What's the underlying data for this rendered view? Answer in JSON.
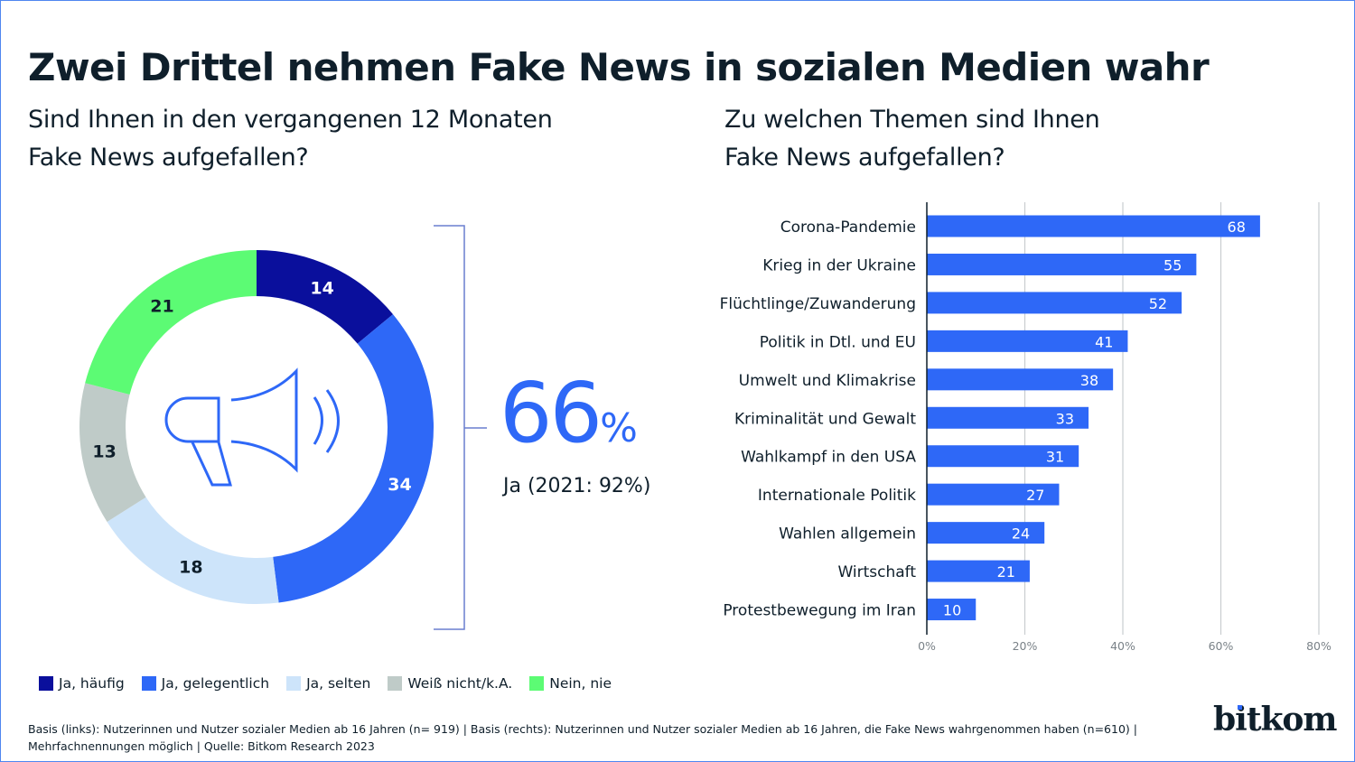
{
  "title": "Zwei Drittel nehmen Fake News in sozialen Medien wahr",
  "left_question": [
    "Sind Ihnen in den vergangenen 12 Monaten",
    "Fake News aufgefallen?"
  ],
  "right_question": [
    "Zu welchen Themen sind Ihnen",
    "Fake News aufgefallen?"
  ],
  "highlight": {
    "value": "66",
    "unit": "%",
    "caption": "Ja (2021: 92%)"
  },
  "center_icon": "megaphone-icon",
  "footnote": [
    "Basis (links): Nutzerinnen und Nutzer sozialer Medien ab 16 Jahren (n= 919) | Basis (rechts): Nutzerinnen und Nutzer sozialer Medien ab 16 Jahren, die Fake News wahrgenommen haben (n=610) |",
    "Mehrfachnennungen möglich | Quelle: Bitkom Research 2023"
  ],
  "logo": "bitkom",
  "colors": {
    "accent": "#2e68f7",
    "text": "#0f1f2b",
    "grid": "#c9cdd0"
  },
  "chart_data": [
    {
      "type": "pie",
      "variant": "donut",
      "title": "Sind Ihnen in den vergangenen 12 Monaten Fake News aufgefallen?",
      "unit": "%",
      "legend_position": "bottom",
      "slices": [
        {
          "label": "Ja, häufig",
          "value": 14,
          "color": "#0a0f9c",
          "label_color": "#ffffff"
        },
        {
          "label": "Ja, gelegentlich",
          "value": 34,
          "color": "#2e68f7",
          "label_color": "#ffffff"
        },
        {
          "label": "Ja, selten",
          "value": 18,
          "color": "#cde4fa",
          "label_color": "#0f1f2b"
        },
        {
          "label": "Weiß nicht/k.A.",
          "value": 13,
          "color": "#bfcbc8",
          "label_color": "#0f1f2b"
        },
        {
          "label": "Nein, nie",
          "value": 21,
          "color": "#5cfb74",
          "label_color": "#0f1f2b"
        }
      ]
    },
    {
      "type": "bar",
      "orientation": "horizontal",
      "title": "Zu welchen Themen sind Ihnen Fake News aufgefallen?",
      "categories": [
        "Corona-Pandemie",
        "Krieg in der Ukraine",
        "Flüchtlinge/Zuwanderung",
        "Politik in Dtl. und EU",
        "Umwelt und Klimakrise",
        "Kriminalität und Gewalt",
        "Wahlkampf in den USA",
        "Internationale Politik",
        "Wahlen allgemein",
        "Wirtschaft",
        "Protestbewegung im Iran"
      ],
      "values": [
        68,
        55,
        52,
        41,
        38,
        33,
        31,
        27,
        24,
        21,
        10
      ],
      "xlim": [
        0,
        80
      ],
      "xticks": [
        "0%",
        "20%",
        "40%",
        "60%",
        "80%"
      ],
      "grid": true,
      "bar_color": "#2e68f7",
      "xlabel": "",
      "ylabel": ""
    }
  ]
}
